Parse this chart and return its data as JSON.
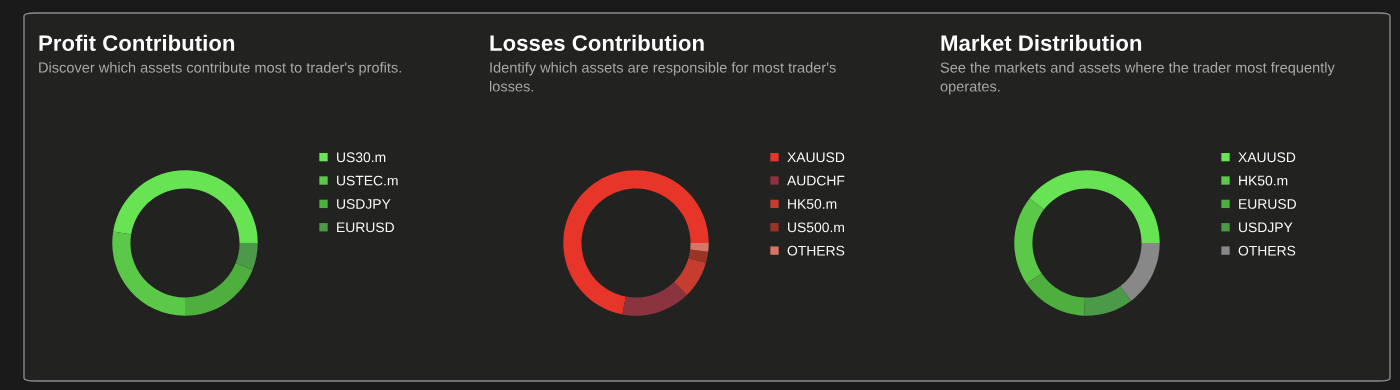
{
  "chart_data": [
    {
      "type": "donut",
      "title": "Profit Contribution",
      "subtitle": "Discover which assets contribute most to trader's profits.",
      "categories": [
        "US30.m",
        "USTEC.m",
        "USDJPY",
        "EURUSD"
      ],
      "values": [
        47.5,
        27.5,
        19,
        6
      ],
      "colors": [
        "#68e354",
        "#5cc84a",
        "#4faf3e",
        "#4a9a48"
      ],
      "legend": "right"
    },
    {
      "type": "donut",
      "title": "Losses Contribution",
      "subtitle": "Identify which assets are responsible for most trader's losses.",
      "categories": [
        "XAUUSD",
        "AUDCHF",
        "HK50.m",
        "US500.m",
        "OTHERS"
      ],
      "values": [
        72,
        15.3,
        8.3,
        2.5,
        1.9
      ],
      "colors": [
        "#e8352a",
        "#8c3340",
        "#c63d30",
        "#9a3525",
        "#d87565"
      ],
      "legend": "right"
    },
    {
      "type": "donut",
      "title": "Market Distribution",
      "subtitle": "See the markets and assets where the trader most frequently operates.",
      "categories": [
        "XAUUSD",
        "HK50.m",
        "EURUSD",
        "USDJPY",
        "OTHERS"
      ],
      "values": [
        39.5,
        19.9,
        15,
        11,
        14.6
      ],
      "colors": [
        "#68e354",
        "#5cc84a",
        "#4faf3e",
        "#4a9a48",
        "#888888"
      ],
      "legend": "right"
    }
  ]
}
